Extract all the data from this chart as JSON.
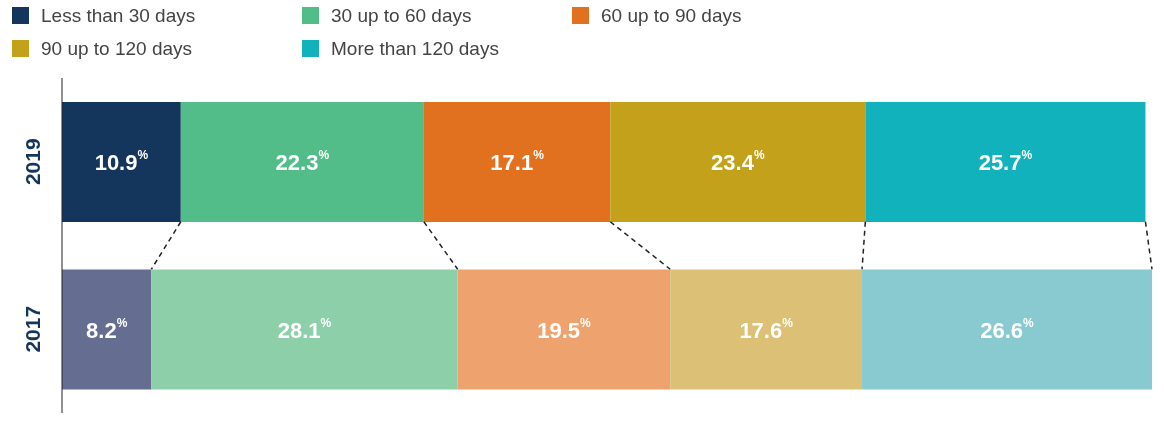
{
  "chart_data": {
    "type": "bar",
    "orientation": "horizontal",
    "stacked": true,
    "categories": [
      "2019",
      "2017"
    ],
    "xlim": [
      0,
      100
    ],
    "tick_labels": "y",
    "legend": "top left",
    "series": [
      {
        "name": "Less than 30 days",
        "color": "#14365d",
        "colors": [
          "#14365d",
          "#656d91"
        ],
        "values": [
          10.9,
          8.2
        ],
        "value_labels": [
          "10.9$^{%}$",
          "8.2$^{%}$"
        ]
      },
      {
        "name": "30 up to 60 days",
        "color": "#52bd89",
        "colors": [
          "#52bd89",
          "#8dcfa8"
        ],
        "values": [
          22.3,
          28.1
        ],
        "value_labels": [
          "22.3$^{%}$",
          "28.1$^{%}$"
        ]
      },
      {
        "name": "60 up to 90 days",
        "color": "#e2711f",
        "colors": [
          "#e2711f",
          "#eea36f"
        ],
        "values": [
          17.1,
          19.5
        ],
        "value_labels": [
          "17.1$^{%}$",
          "19.5$^{%}$"
        ]
      },
      {
        "name": "90 up to 120 days",
        "color": "#c4a11b",
        "colors": [
          "#c4a11b",
          "#dcc075"
        ],
        "values": [
          23.4,
          17.6
        ],
        "value_labels": [
          "23.4$^{%}$",
          "17.6$^{%}$"
        ]
      },
      {
        "name": "More than 120 days",
        "color": "#11b2bb",
        "colors": [
          "#11b2bb",
          "#88cad0"
        ],
        "values": [
          25.7,
          26.6
        ],
        "value_labels": [
          "25.7$^{%}$",
          "26.6$^{%}$"
        ]
      }
    ]
  }
}
